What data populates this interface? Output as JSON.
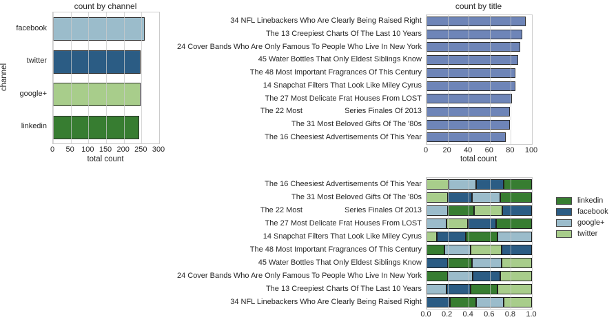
{
  "figure": {
    "background": "#ffffff",
    "text_color": "#262626",
    "frame_color": "#cccccc",
    "grid_color": "#cbcbcb",
    "bar_edge_color": "#2e2e2e"
  },
  "chart_data": [
    {
      "type": "bar",
      "orientation": "horizontal",
      "title": "count by channel",
      "xlabel": "total count",
      "ylabel": "channel",
      "xlim": [
        0,
        300
      ],
      "xticks": [
        "0",
        "50",
        "100",
        "150",
        "200",
        "250",
        "300"
      ],
      "grid": true,
      "categories": [
        "facebook",
        "twitter",
        "google+",
        "linkedin"
      ],
      "values": [
        260,
        248,
        248,
        244
      ],
      "bar_colors": [
        "#9bbccb",
        "#2b5c84",
        "#a8cd8b",
        "#377d31"
      ]
    },
    {
      "type": "bar",
      "orientation": "horizontal",
      "title": "count by title",
      "xlabel": "total count",
      "ylabel": "",
      "xlim": [
        0,
        100
      ],
      "xticks": [
        "0",
        "20",
        "40",
        "60",
        "80",
        "100"
      ],
      "grid": true,
      "categories": [
        "34 NFL Linebackers Who Are Clearly Being Raised Right",
        "The 13 Creepiest Charts Of The Last 10 Years",
        "24 Cover Bands Who Are Only Famous To People Who Live In New York",
        "45 Water Bottles That Only Eldest Siblings Know",
        "The 48 Most Important Fragrances Of This Century",
        "14 Snapchat Filters That Look Like Miley Cyrus",
        "The 27 Most Delicate Frat Houses From LOST",
        "The 22 Most                    Series Finales Of 2013",
        "The 31 Most Beloved Gifts Of The '80s",
        "The 16 Cheesiest Advertisements Of This Year"
      ],
      "values": [
        94,
        91,
        89,
        87,
        84,
        84,
        81,
        79,
        79,
        75
      ],
      "bar_color": "#6e85b8"
    },
    {
      "type": "stacked-bar",
      "orientation": "horizontal",
      "normalized": true,
      "title": "",
      "xlabel": "",
      "ylabel": "",
      "xlim": [
        0,
        1
      ],
      "xticks": [
        "0.0",
        "0.2",
        "0.4",
        "0.6",
        "0.8",
        "1.0"
      ],
      "grid": true,
      "series_colors": {
        "linkedin": "#377d31",
        "facebook": "#2b5c84",
        "google+": "#9bbccb",
        "twitter": "#a8cd8b"
      },
      "legend": {
        "position": "right",
        "items": [
          "linkedin",
          "facebook",
          "google+",
          "twitter"
        ]
      },
      "categories": [
        "The 16 Cheesiest Advertisements Of This Year",
        "The 31 Most Beloved Gifts Of The '80s",
        "The 22 Most                    Series Finales Of 2013",
        "The 27 Most Delicate Frat Houses From LOST",
        "14 Snapchat Filters That Look Like Miley Cyrus",
        "The 48 Most Important Fragrances Of This Century",
        "45 Water Bottles That Only Eldest Siblings Know",
        "24 Cover Bands Who Are Only Famous To People Who Live In New York",
        "The 13 Creepiest Charts Of The Last 10 Years",
        "34 NFL Linebackers Who Are Clearly Being Raised Right"
      ],
      "rows": [
        [
          {
            "channel": "twitter",
            "value": 0.21
          },
          {
            "channel": "google+",
            "value": 0.26
          },
          {
            "channel": "facebook",
            "value": 0.26
          },
          {
            "channel": "linkedin",
            "value": 0.27
          }
        ],
        [
          {
            "channel": "twitter",
            "value": 0.2
          },
          {
            "channel": "facebook",
            "value": 0.23
          },
          {
            "channel": "google+",
            "value": 0.27
          },
          {
            "channel": "linkedin",
            "value": 0.3
          }
        ],
        [
          {
            "channel": "google+",
            "value": 0.2
          },
          {
            "channel": "linkedin",
            "value": 0.25
          },
          {
            "channel": "twitter",
            "value": 0.27
          },
          {
            "channel": "facebook",
            "value": 0.28
          }
        ],
        [
          {
            "channel": "google+",
            "value": 0.19
          },
          {
            "channel": "twitter",
            "value": 0.2
          },
          {
            "channel": "facebook",
            "value": 0.27
          },
          {
            "channel": "linkedin",
            "value": 0.34
          }
        ],
        [
          {
            "channel": "twitter",
            "value": 0.1
          },
          {
            "channel": "facebook",
            "value": 0.27
          },
          {
            "channel": "linkedin",
            "value": 0.3
          },
          {
            "channel": "google+",
            "value": 0.33
          }
        ],
        [
          {
            "channel": "linkedin",
            "value": 0.17
          },
          {
            "channel": "google+",
            "value": 0.25
          },
          {
            "channel": "twitter",
            "value": 0.29
          },
          {
            "channel": "facebook",
            "value": 0.29
          }
        ],
        [
          {
            "channel": "facebook",
            "value": 0.2
          },
          {
            "channel": "linkedin",
            "value": 0.23
          },
          {
            "channel": "google+",
            "value": 0.28
          },
          {
            "channel": "twitter",
            "value": 0.29
          }
        ],
        [
          {
            "channel": "linkedin",
            "value": 0.2
          },
          {
            "channel": "google+",
            "value": 0.24
          },
          {
            "channel": "facebook",
            "value": 0.26
          },
          {
            "channel": "twitter",
            "value": 0.3
          }
        ],
        [
          {
            "channel": "google+",
            "value": 0.19
          },
          {
            "channel": "facebook",
            "value": 0.23
          },
          {
            "channel": "linkedin",
            "value": 0.25
          },
          {
            "channel": "twitter",
            "value": 0.33
          }
        ],
        [
          {
            "channel": "facebook",
            "value": 0.22
          },
          {
            "channel": "linkedin",
            "value": 0.25
          },
          {
            "channel": "google+",
            "value": 0.26
          },
          {
            "channel": "twitter",
            "value": 0.27
          }
        ]
      ]
    }
  ]
}
